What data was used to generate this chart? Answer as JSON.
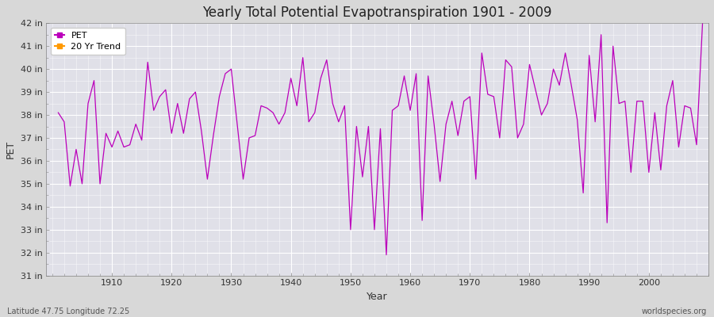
{
  "title": "Yearly Total Potential Evapotranspiration 1901 - 2009",
  "xlabel": "Year",
  "ylabel": "PET",
  "fig_facecolor": "#d8d8d8",
  "plot_bg_color": "#e0e0e8",
  "line_color": "#bb00bb",
  "trend_color": "#ff9900",
  "ylim": [
    31,
    42
  ],
  "ytick_labels": [
    "31 in",
    "32 in",
    "33 in",
    "34 in",
    "35 in",
    "36 in",
    "37 in",
    "38 in",
    "39 in",
    "40 in",
    "41 in",
    "42 in"
  ],
  "ytick_values": [
    31,
    32,
    33,
    34,
    35,
    36,
    37,
    38,
    39,
    40,
    41,
    42
  ],
  "years": [
    1901,
    1902,
    1903,
    1904,
    1905,
    1906,
    1907,
    1908,
    1909,
    1910,
    1911,
    1912,
    1913,
    1914,
    1915,
    1916,
    1917,
    1918,
    1919,
    1920,
    1921,
    1922,
    1923,
    1924,
    1925,
    1926,
    1927,
    1928,
    1929,
    1930,
    1931,
    1932,
    1933,
    1934,
    1935,
    1936,
    1937,
    1938,
    1939,
    1940,
    1941,
    1942,
    1943,
    1944,
    1945,
    1946,
    1947,
    1948,
    1949,
    1950,
    1951,
    1952,
    1953,
    1954,
    1955,
    1956,
    1957,
    1958,
    1959,
    1960,
    1961,
    1962,
    1963,
    1964,
    1965,
    1966,
    1967,
    1968,
    1969,
    1970,
    1971,
    1972,
    1973,
    1974,
    1975,
    1976,
    1977,
    1978,
    1979,
    1980,
    1981,
    1982,
    1983,
    1984,
    1985,
    1986,
    1987,
    1988,
    1989,
    1990,
    1991,
    1992,
    1993,
    1994,
    1995,
    1996,
    1997,
    1998,
    1999,
    2000,
    2001,
    2002,
    2003,
    2004,
    2005,
    2006,
    2007,
    2008,
    2009
  ],
  "pet": [
    38.1,
    37.7,
    34.9,
    36.5,
    35.0,
    38.5,
    39.5,
    35.0,
    37.2,
    36.6,
    37.3,
    36.6,
    36.7,
    37.6,
    36.9,
    40.3,
    38.2,
    38.8,
    39.1,
    37.2,
    38.5,
    37.2,
    38.7,
    39.0,
    37.3,
    35.2,
    37.1,
    38.8,
    39.8,
    40.0,
    37.6,
    35.2,
    37.0,
    37.1,
    38.4,
    38.3,
    38.1,
    37.6,
    38.1,
    39.6,
    38.4,
    40.5,
    37.7,
    38.1,
    39.6,
    40.4,
    38.5,
    37.7,
    38.4,
    33.0,
    37.5,
    35.3,
    37.5,
    33.0,
    37.4,
    31.9,
    38.2,
    38.4,
    39.7,
    38.2,
    39.8,
    33.4,
    39.7,
    37.6,
    35.1,
    37.6,
    38.6,
    37.1,
    38.6,
    38.8,
    35.2,
    40.7,
    38.9,
    38.8,
    37.0,
    40.4,
    40.1,
    37.0,
    37.6,
    40.2,
    39.1,
    38.0,
    38.5,
    40.0,
    39.3,
    40.7,
    39.3,
    37.8,
    34.6,
    40.6,
    37.7,
    41.5,
    33.3,
    41.0,
    38.5,
    38.6,
    35.5,
    38.6,
    38.6,
    35.5,
    38.1,
    35.6,
    38.4,
    39.5,
    36.6,
    38.4,
    38.3,
    36.7,
    42.0
  ],
  "footnote_left": "Latitude 47.75 Longitude 72.25",
  "footnote_right": "worldspecies.org",
  "legend_pet": "PET",
  "legend_trend": "20 Yr Trend"
}
